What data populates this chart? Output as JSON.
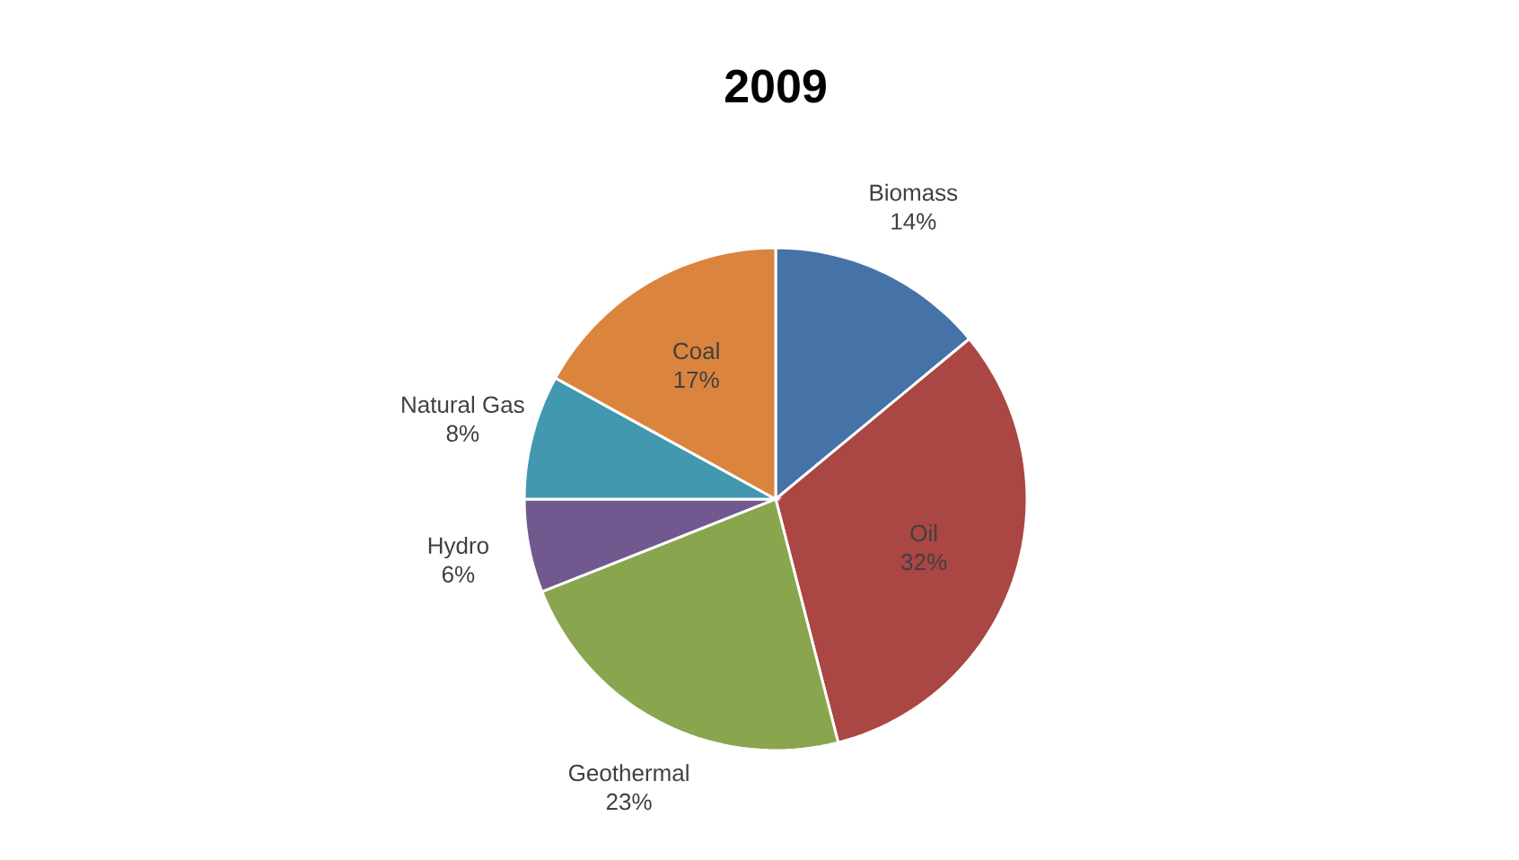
{
  "chart_data": {
    "type": "pie",
    "title": "2009",
    "categories": [
      "Biomass",
      "Oil",
      "Geothermal",
      "Hydro",
      "Natural Gas",
      "Coal"
    ],
    "values": [
      14,
      32,
      23,
      6,
      8,
      17
    ],
    "value_labels": [
      "14%",
      "32%",
      "23%",
      "6%",
      "8%",
      "17%"
    ],
    "colors": [
      "#4572a7",
      "#aa4643",
      "#89a54e",
      "#71588f",
      "#4198af",
      "#db843d"
    ]
  }
}
